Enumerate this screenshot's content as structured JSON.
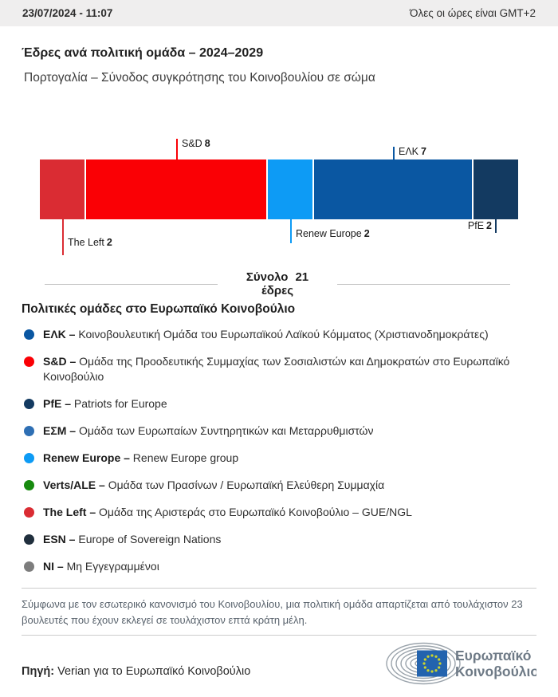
{
  "header": {
    "datetime": "23/07/2024 - 11:07",
    "timezone_note": "Όλες οι ώρες είναι GMT+2"
  },
  "title": "Έδρες ανά πολιτική ομάδα – 2024–2029",
  "subtitle": "Πορτογαλία – Σύνοδος συγκρότησης του Κοινοβουλίου σε σώμα",
  "chart_data": {
    "type": "bar",
    "variant": "stacked-horizontal-seats",
    "title": "Έδρες ανά πολιτική ομάδα – 2024–2029",
    "subtitle": "Πορτογαλία – Σύνοδος συγκρότησης του Κοινοβουλίου σε σώμα",
    "total": {
      "label": "Σύνολο",
      "value": "21",
      "unit": "έδρες"
    },
    "segments": [
      {
        "name": "The Left",
        "value": "2",
        "color": "#da2c33",
        "label_side": "below"
      },
      {
        "name": "S&D",
        "value": "8",
        "color": "#fa0005",
        "label_side": "above"
      },
      {
        "name": "Renew Europe",
        "value": "2",
        "color": "#0d9bf5",
        "label_side": "below"
      },
      {
        "name": "ΕΛΚ",
        "value": "7",
        "color": "#0a57a2",
        "label_side": "above"
      },
      {
        "name": "PfE",
        "value": "2",
        "color": "#133a61",
        "label_side": "below"
      }
    ]
  },
  "legend": {
    "heading": "Πολιτικές ομάδες στο Ευρωπαϊκό Κοινοβούλιο",
    "separator": "–",
    "items": [
      {
        "abbr": "ΕΛΚ",
        "desc": "Κοινοβουλευτική Ομάδα του Ευρωπαϊκού Λαϊκού Κόμματος (Χριστιανοδημοκράτες)",
        "color": "#0a57a2"
      },
      {
        "abbr": "S&D",
        "desc": "Ομάδα της Προοδευτικής Συμμαχίας των Σοσιαλιστών και Δημοκρατών στο Ευρωπαϊκό Κοινοβούλιο",
        "color": "#fa0005"
      },
      {
        "abbr": "PfE",
        "desc": "Patriots for Europe",
        "color": "#133a61"
      },
      {
        "abbr": "ΕΣΜ",
        "desc": "Ομάδα των Ευρωπαίων Συντηρητικών και Μεταρρυθμιστών",
        "color": "#2e6fb4"
      },
      {
        "abbr": "Renew Europe",
        "desc": "Renew Europe group",
        "color": "#0d9bf5"
      },
      {
        "abbr": "Verts/ALE",
        "desc": "Ομάδα των Πρασίνων / Ευρωπαϊκή Ελεύθερη Συμμαχία",
        "color": "#178a0f"
      },
      {
        "abbr": "The Left",
        "desc": "Ομάδα της Αριστεράς στο Ευρωπαϊκό Κοινοβούλιο – GUE/NGL",
        "color": "#da2c33"
      },
      {
        "abbr": "ESN",
        "desc": "Europe of Sovereign Nations",
        "color": "#202f3d"
      },
      {
        "abbr": "NI",
        "desc": "Μη Εγγεγραμμένοι",
        "color": "#7d7d7d"
      }
    ]
  },
  "footnote": "Σύμφωνα με τον εσωτερικό κανονισμό του Κοινοβουλίου, μια πολιτική ομάδα απαρτίζεται από τουλάχιστον 23 βουλευτές που έχουν εκλεγεί σε τουλάχιστον επτά κράτη μέλη.",
  "source": {
    "label": "Πηγή:",
    "text": " Verian για το Ευρωπαϊκό Κοινοβούλιο"
  },
  "logo": {
    "line1": "Ευρωπαϊκό",
    "line2": "Κοινοβούλιο"
  }
}
